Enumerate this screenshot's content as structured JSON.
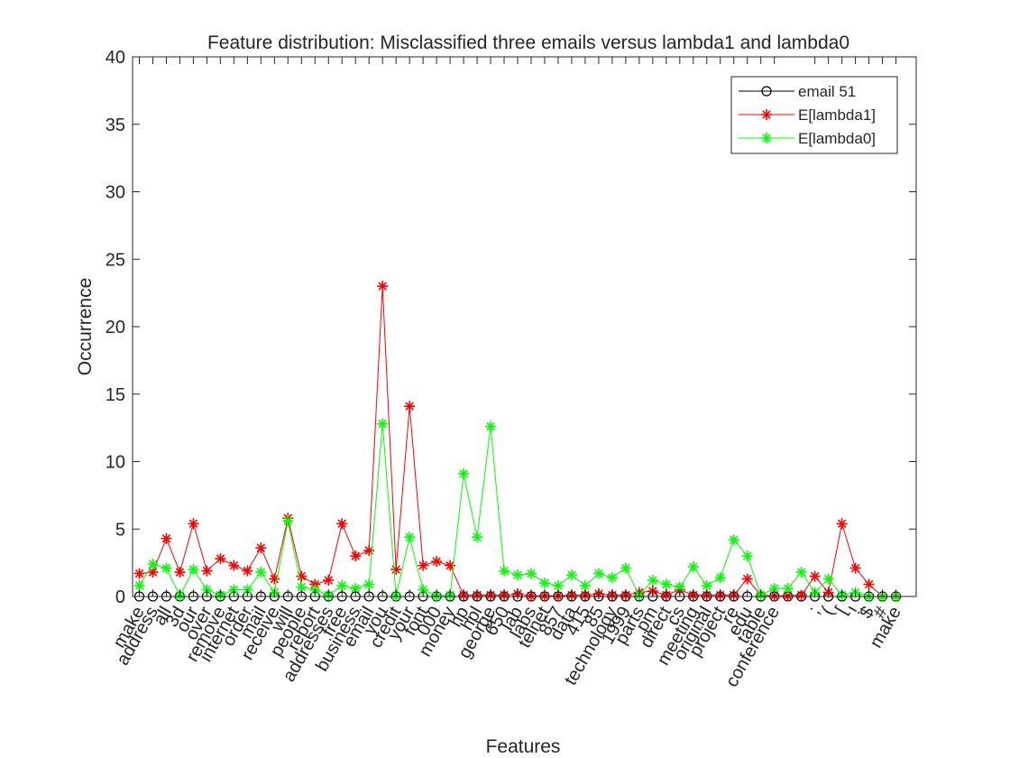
{
  "chart_data": {
    "type": "line",
    "title": "Feature distribution: Misclassified three emails versus lambda1 and lambda0",
    "xlabel": "Features",
    "ylabel": "Occurrence",
    "xlim": [
      0.5,
      58.5
    ],
    "ylim": [
      0,
      40
    ],
    "yticks": [
      0,
      5,
      10,
      15,
      20,
      25,
      30,
      35,
      40
    ],
    "grid": false,
    "legend_position": "top-right",
    "categories": [
      "make",
      "address",
      "all",
      "3d",
      "our",
      "over",
      "remove",
      "internet",
      "order",
      "mail",
      "receive",
      "will",
      "people",
      "report",
      "addresses",
      "free",
      "business",
      "email",
      "you",
      "credit",
      "your",
      "font",
      "000",
      "money",
      "hp",
      "hpl",
      "george",
      "650",
      "lab",
      "labs",
      "telnet",
      "857",
      "data",
      "415",
      "85",
      "technology",
      "1999",
      "parts",
      "pm",
      "direct",
      "cs",
      "meeting",
      "original",
      "project",
      "re",
      "edu",
      "table",
      "conference",
      ";",
      "(",
      "[",
      "!",
      "$",
      "#",
      "make"
    ],
    "category_x": [
      1,
      2,
      3,
      4,
      5,
      6,
      7,
      8,
      9,
      10,
      11,
      12,
      13,
      14,
      15,
      16,
      17,
      18,
      19,
      20,
      21,
      22,
      23,
      24,
      25,
      26,
      27,
      28,
      29,
      30,
      31,
      32,
      33,
      34,
      35,
      36,
      37,
      38,
      39,
      40,
      41,
      42,
      43,
      44,
      45,
      46,
      47,
      48,
      51,
      52,
      53,
      54,
      55,
      56,
      57
    ],
    "series": [
      {
        "name": "email 51",
        "color": "#000000",
        "marker": "circle",
        "x": [
          1,
          2,
          3,
          4,
          5,
          6,
          7,
          8,
          9,
          10,
          11,
          12,
          13,
          14,
          15,
          16,
          17,
          18,
          19,
          20,
          21,
          22,
          23,
          24,
          25,
          26,
          27,
          28,
          29,
          30,
          31,
          32,
          33,
          34,
          35,
          36,
          37,
          38,
          39,
          40,
          41,
          42,
          43,
          44,
          45,
          46,
          47,
          48,
          49,
          50,
          51,
          52,
          53,
          54,
          55,
          56,
          57
        ],
        "y": [
          0,
          0,
          0,
          0,
          0,
          0,
          0,
          0,
          0,
          0,
          0,
          0,
          0,
          0,
          0,
          0,
          0,
          0,
          0,
          0,
          0,
          0,
          0,
          0,
          0,
          0,
          0,
          0,
          0,
          0,
          0,
          0,
          0,
          0,
          0,
          0,
          0,
          0,
          0,
          0,
          0,
          0,
          0,
          0,
          0,
          0,
          0,
          0,
          0,
          0,
          0,
          0,
          0,
          0,
          0,
          0,
          0
        ]
      },
      {
        "name": "E[lambda1]",
        "color": "#ff0000",
        "marker": "asterisk",
        "x": [
          1,
          2,
          3,
          4,
          5,
          6,
          7,
          8,
          9,
          10,
          11,
          12,
          13,
          14,
          15,
          16,
          17,
          18,
          19,
          20,
          21,
          22,
          23,
          24,
          25,
          26,
          27,
          28,
          29,
          30,
          31,
          32,
          33,
          34,
          35,
          36,
          37,
          38,
          39,
          40,
          41,
          42,
          43,
          44,
          45,
          46,
          47,
          48,
          49,
          50,
          51,
          52,
          53,
          54,
          55,
          56,
          57
        ],
        "y": [
          1.7,
          1.8,
          4.3,
          1.8,
          5.4,
          1.9,
          2.8,
          2.3,
          1.9,
          3.6,
          1.3,
          5.8,
          1.5,
          0.9,
          1.2,
          5.4,
          3.0,
          3.4,
          23.0,
          2.0,
          14.1,
          2.3,
          2.6,
          2.3,
          0.1,
          0.1,
          0.1,
          0.1,
          0.2,
          0.05,
          0.05,
          0.05,
          0.1,
          0.1,
          0.2,
          0.1,
          0.1,
          0.3,
          0.4,
          0.1,
          0.5,
          0.1,
          0.1,
          0.1,
          0.1,
          1.3,
          0.1,
          0.05,
          0.05,
          0.1,
          1.5,
          0.3,
          5.4,
          2.1,
          0.9,
          0,
          0
        ]
      },
      {
        "name": "E[lambda0]",
        "color": "#00ff00",
        "marker": "asterisk",
        "x": [
          1,
          2,
          3,
          4,
          5,
          6,
          7,
          8,
          9,
          10,
          11,
          12,
          13,
          14,
          15,
          16,
          17,
          18,
          19,
          20,
          21,
          22,
          23,
          24,
          25,
          26,
          27,
          28,
          29,
          30,
          31,
          32,
          33,
          34,
          35,
          36,
          37,
          38,
          39,
          40,
          41,
          42,
          43,
          44,
          45,
          46,
          47,
          48,
          49,
          50,
          51,
          52,
          53,
          54,
          55,
          56,
          57
        ],
        "y": [
          0.8,
          2.4,
          2.1,
          0.05,
          2.0,
          0.5,
          0.1,
          0.5,
          0.5,
          1.8,
          0.3,
          5.6,
          0.7,
          0.5,
          0.1,
          0.8,
          0.6,
          0.9,
          12.8,
          0.05,
          4.4,
          0.5,
          0.05,
          0.1,
          9.1,
          4.4,
          12.6,
          1.9,
          1.6,
          1.7,
          1.0,
          0.8,
          1.6,
          0.8,
          1.7,
          1.4,
          2.1,
          0.1,
          1.2,
          0.9,
          0.7,
          2.2,
          0.8,
          1.4,
          4.2,
          3.0,
          0.1,
          0.6,
          0.6,
          1.8,
          0.3,
          1.3,
          0.1,
          0.3,
          0,
          0,
          0
        ]
      }
    ]
  }
}
